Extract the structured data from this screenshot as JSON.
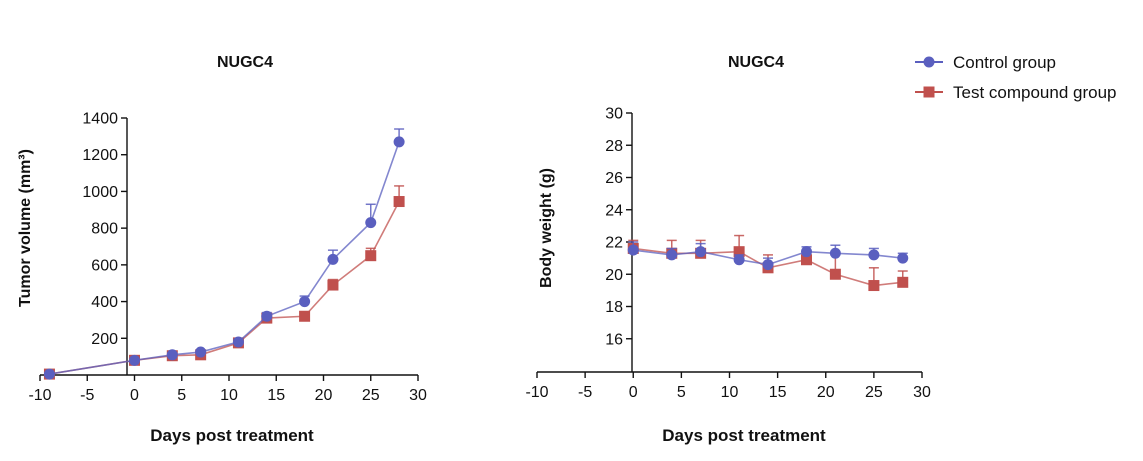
{
  "legend": {
    "items": [
      {
        "label": "Control group",
        "color": "#5a5fbf",
        "marker": "circle"
      },
      {
        "label": "Test compound group",
        "color": "#c0504d",
        "marker": "square"
      }
    ]
  },
  "chart_data": [
    {
      "type": "line",
      "title": "NUGC4",
      "xlabel": "Days post treatment",
      "ylabel": "Tumor volume (mm³)",
      "xlim": [
        -10,
        30
      ],
      "ylim": [
        0,
        1400
      ],
      "xticks": [
        -10,
        -5,
        0,
        5,
        10,
        15,
        20,
        25,
        30
      ],
      "xtick_labels": [
        "-10",
        "-5",
        "0",
        "5",
        "10",
        "15",
        "20",
        "25",
        "30"
      ],
      "yticks": [
        200,
        400,
        600,
        800,
        1000,
        1200,
        1400
      ],
      "ytick_labels": [
        "200",
        "400",
        "600",
        "800",
        "1000",
        "1200",
        "1400"
      ],
      "grid": false,
      "series": [
        {
          "name": "Control group",
          "color": "#5a5fbf",
          "marker": "circle",
          "x": [
            -9,
            0,
            4,
            7,
            11,
            14,
            18,
            21,
            25,
            28
          ],
          "y": [
            5,
            80,
            110,
            125,
            180,
            320,
            400,
            630,
            830,
            1270
          ],
          "err": [
            5,
            10,
            10,
            10,
            15,
            20,
            30,
            50,
            100,
            70
          ]
        },
        {
          "name": "Test compound group",
          "color": "#c0504d",
          "marker": "square",
          "x": [
            -9,
            0,
            4,
            7,
            11,
            14,
            18,
            21,
            25,
            28
          ],
          "y": [
            5,
            80,
            105,
            110,
            175,
            310,
            320,
            490,
            650,
            945
          ],
          "err": [
            5,
            10,
            10,
            10,
            15,
            25,
            20,
            30,
            40,
            85
          ]
        }
      ]
    },
    {
      "type": "line",
      "title": "NUGC4",
      "xlabel": "Days post treatment",
      "ylabel": "Body weight (g)",
      "xlim": [
        -10,
        30
      ],
      "ylim": [
        14,
        30
      ],
      "xticks": [
        -10,
        -5,
        0,
        5,
        10,
        15,
        20,
        25,
        30
      ],
      "xtick_labels": [
        "-10",
        "-5",
        "0",
        "5",
        "10",
        "15",
        "20",
        "25",
        "30"
      ],
      "yticks": [
        16,
        18,
        20,
        22,
        24,
        26,
        28,
        30
      ],
      "ytick_labels": [
        "16",
        "18",
        "20",
        "22",
        "24",
        "26",
        "28",
        "30"
      ],
      "grid": false,
      "series": [
        {
          "name": "Control group",
          "color": "#5a5fbf",
          "marker": "circle",
          "x": [
            0,
            4,
            7,
            11,
            14,
            18,
            21,
            25,
            28
          ],
          "y": [
            21.5,
            21.2,
            21.4,
            20.9,
            20.6,
            21.4,
            21.3,
            21.2,
            21.0
          ],
          "err": [
            0.5,
            0.4,
            0.5,
            0.3,
            0.4,
            0.3,
            0.5,
            0.4,
            0.3
          ]
        },
        {
          "name": "Test compound group",
          "color": "#c0504d",
          "marker": "square",
          "x": [
            0,
            4,
            7,
            11,
            14,
            18,
            21,
            25,
            28
          ],
          "y": [
            21.6,
            21.3,
            21.3,
            21.4,
            20.4,
            20.9,
            20.0,
            19.3,
            19.5
          ],
          "err": [
            0.5,
            0.8,
            0.8,
            1.0,
            0.8,
            0.4,
            1.3,
            1.1,
            0.7
          ]
        }
      ]
    }
  ]
}
